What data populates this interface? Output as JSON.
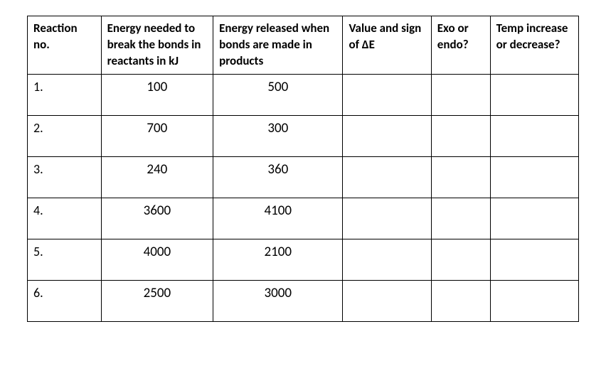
{
  "table": {
    "background_color": "#ffffff",
    "border_color": "#000000",
    "text_color": "#000000",
    "header_font_weight": 700,
    "header_fontsize": 17,
    "body_fontsize": 18,
    "num_fontsize": 19,
    "column_widths_pct": [
      12.5,
      19,
      22,
      15,
      10,
      15
    ],
    "columns": [
      "Reaction no.",
      "Energy needed to break the bonds in reactants in kJ",
      "Energy released when bonds are made in products",
      "Value and sign of ΔE",
      "Exo or endo?",
      "Temp increase or decrease?"
    ],
    "rows": [
      {
        "no": "1.",
        "energy_break": "100",
        "energy_release": "500",
        "delta_e": "",
        "exo_endo": "",
        "temp": ""
      },
      {
        "no": "2.",
        "energy_break": "700",
        "energy_release": "300",
        "delta_e": "",
        "exo_endo": "",
        "temp": ""
      },
      {
        "no": "3.",
        "energy_break": "240",
        "energy_release": "360",
        "delta_e": "",
        "exo_endo": "",
        "temp": ""
      },
      {
        "no": "4.",
        "energy_break": "3600",
        "energy_release": "4100",
        "delta_e": "",
        "exo_endo": "",
        "temp": ""
      },
      {
        "no": "5.",
        "energy_break": "4000",
        "energy_release": "2100",
        "delta_e": "",
        "exo_endo": "",
        "temp": ""
      },
      {
        "no": "6.",
        "energy_break": "2500",
        "energy_release": "3000",
        "delta_e": "",
        "exo_endo": "",
        "temp": ""
      }
    ]
  }
}
